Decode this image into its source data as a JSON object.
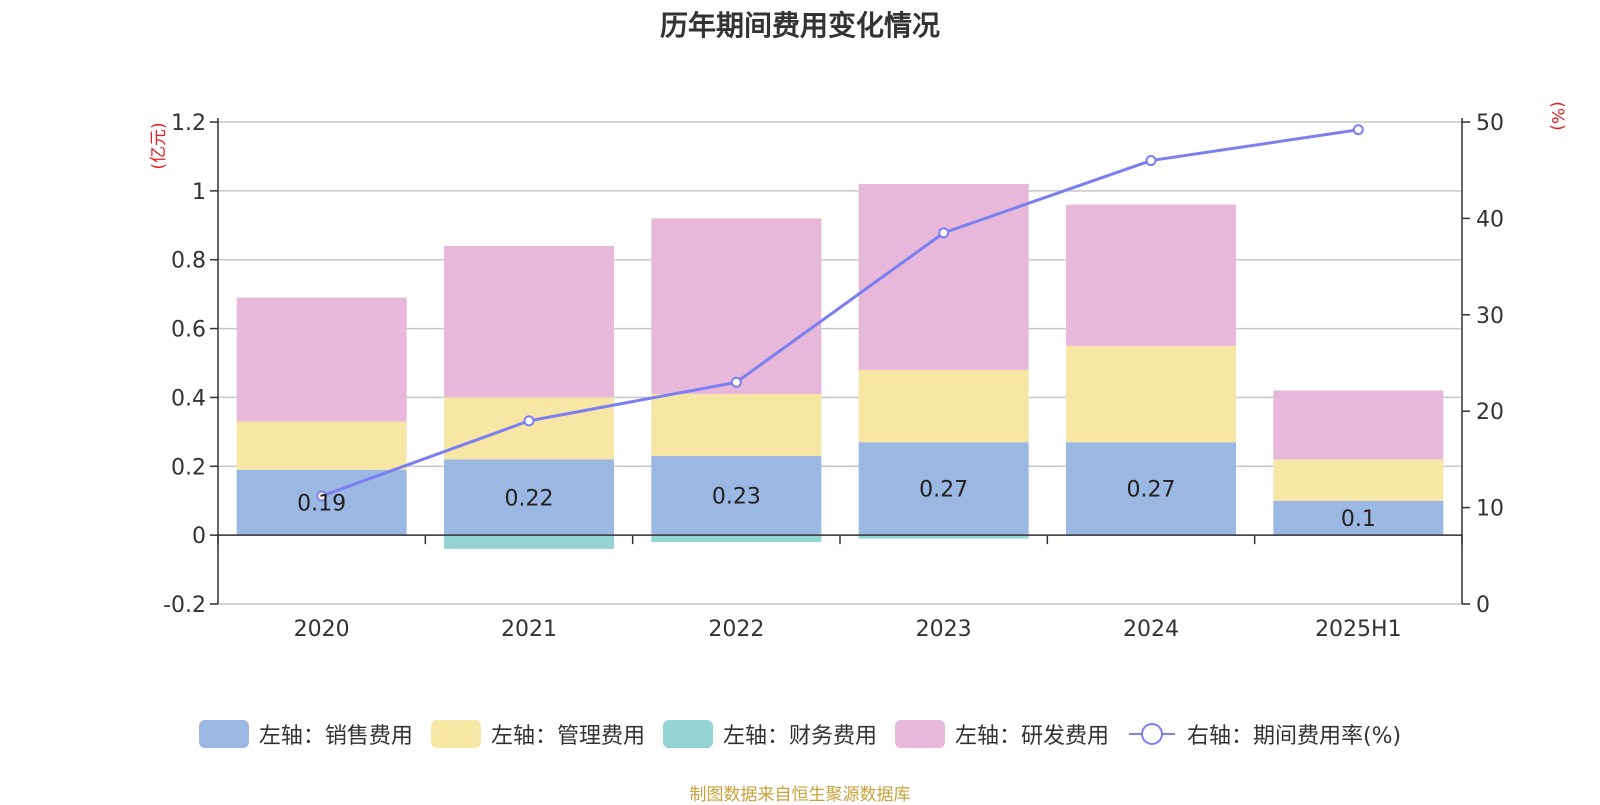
{
  "title": "历年期间费用变化情况",
  "source_note": "制图数据来自恒生聚源数据库",
  "chart_data": {
    "type": "bar",
    "stacked": true,
    "categories": [
      "2020",
      "2021",
      "2022",
      "2023",
      "2024",
      "2025H1"
    ],
    "ylabel_left": "(亿元)",
    "ylabel_right": "(%)",
    "ylim_left": [
      -0.2,
      1.2
    ],
    "yticks_left": [
      "-0.2",
      "0",
      "0.2",
      "0.4",
      "0.6",
      "0.8",
      "1",
      "1.2"
    ],
    "ylim_right": [
      0,
      50
    ],
    "yticks_right": [
      "0",
      "10",
      "20",
      "30",
      "40",
      "50"
    ],
    "grid": true,
    "legend_position": "bottom",
    "series": [
      {
        "name": "左轴：销售费用",
        "axis": "left",
        "color": "#9bb8e2",
        "values": [
          0.19,
          0.22,
          0.23,
          0.27,
          0.27,
          0.1
        ],
        "labels": [
          "0.19",
          "0.22",
          "0.23",
          "0.27",
          "0.27",
          "0.1"
        ]
      },
      {
        "name": "左轴：管理费用",
        "axis": "left",
        "color": "#f8e6a5",
        "values": [
          0.14,
          0.18,
          0.18,
          0.21,
          0.28,
          0.12
        ]
      },
      {
        "name": "左轴：财务费用",
        "axis": "left",
        "color": "#95d4d5",
        "values": [
          0.0,
          -0.04,
          -0.02,
          -0.01,
          0.0,
          0.0
        ]
      },
      {
        "name": "左轴：研发费用",
        "axis": "left",
        "color": "#e7b8da",
        "values": [
          0.36,
          0.44,
          0.51,
          0.54,
          0.41,
          0.2
        ]
      },
      {
        "name": "右轴：期间费用率(%)",
        "axis": "right",
        "type": "line",
        "color": "#7b7ff0",
        "values": [
          11.2,
          19.0,
          23.0,
          38.5,
          46.0,
          49.2
        ]
      }
    ]
  }
}
